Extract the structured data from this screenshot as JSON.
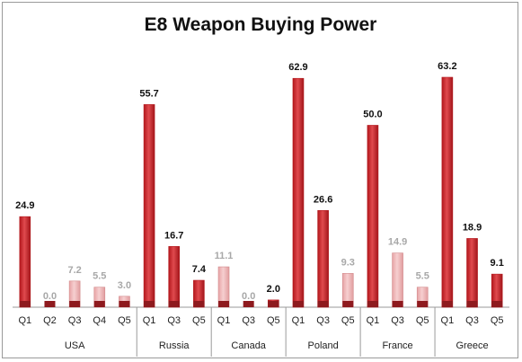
{
  "chart_data": {
    "type": "bar",
    "title": "E8 Weapon Buying Power",
    "groups": [
      {
        "name": "USA",
        "categories": [
          "Q1",
          "Q2",
          "Q3",
          "Q4",
          "Q5"
        ],
        "values": [
          24.9,
          0.0,
          7.2,
          5.5,
          3.0
        ],
        "labels": [
          "24.9",
          "0.0",
          "7.2",
          "5.5",
          "3.0"
        ],
        "highlight": [
          true,
          false,
          false,
          false,
          false
        ]
      },
      {
        "name": "Russia",
        "categories": [
          "Q1",
          "Q3",
          "Q5"
        ],
        "values": [
          55.7,
          16.7,
          7.4
        ],
        "labels": [
          "55.7",
          "16.7",
          "7.4"
        ],
        "highlight": [
          true,
          true,
          true
        ]
      },
      {
        "name": "Canada",
        "categories": [
          "Q1",
          "Q3",
          "Q5"
        ],
        "values": [
          11.1,
          0.0,
          2.0
        ],
        "labels": [
          "11.1",
          "0.0",
          "2.0"
        ],
        "highlight": [
          false,
          false,
          true
        ]
      },
      {
        "name": "Poland",
        "categories": [
          "Q1",
          "Q3",
          "Q5"
        ],
        "values": [
          62.9,
          26.6,
          9.3
        ],
        "labels": [
          "62.9",
          "26.6",
          "9.3"
        ],
        "highlight": [
          true,
          true,
          false
        ]
      },
      {
        "name": "France",
        "categories": [
          "Q1",
          "Q3",
          "Q5"
        ],
        "values": [
          50.0,
          14.9,
          5.5
        ],
        "labels": [
          "50.0",
          "14.9",
          "5.5"
        ],
        "highlight": [
          true,
          false,
          false
        ]
      },
      {
        "name": "Greece",
        "categories": [
          "Q1",
          "Q3",
          "Q5"
        ],
        "values": [
          63.2,
          18.9,
          9.1
        ],
        "labels": [
          "63.2",
          "18.9",
          "9.1"
        ],
        "highlight": [
          true,
          true,
          true
        ]
      }
    ],
    "ylim": [
      0,
      63.2
    ],
    "grid": false,
    "legend": "none",
    "colors": {
      "highlight_top": "#b3171c",
      "highlight_mid": "#e04a4e",
      "faded_fill": "#efb7b8",
      "faded_edge": "#d28a8c",
      "bar_base": "#8e1a1e",
      "highlight_label": "#111111",
      "faded_label": "#a8a8a8",
      "axis": "#9a9a9a"
    }
  }
}
